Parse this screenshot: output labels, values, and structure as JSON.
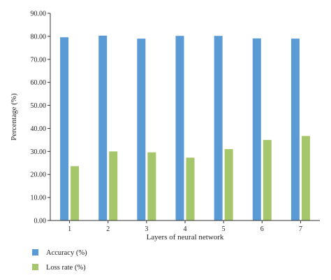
{
  "chart_data": {
    "type": "bar",
    "categories": [
      "1",
      "2",
      "3",
      "4",
      "5",
      "6",
      "7"
    ],
    "series": [
      {
        "name": "Accuracy (%)",
        "values": [
          79.6,
          80.3,
          79.0,
          80.2,
          80.2,
          79.1,
          79.0
        ],
        "color": "#5b9bd5"
      },
      {
        "name": "Loss rate (%)",
        "values": [
          23.6,
          30.0,
          29.6,
          27.3,
          31.0,
          35.0,
          36.7
        ],
        "color": "#a5c66a"
      }
    ],
    "title": "",
    "xlabel": "Layers of neural network",
    "ylabel": "Percentage (%)",
    "ylim": [
      0,
      90
    ],
    "yticks": [
      "0.00",
      "10.00",
      "20.00",
      "30.00",
      "40.00",
      "50.00",
      "60.00",
      "70.00",
      "80.00",
      "90.00"
    ],
    "grid": false,
    "legend_position": "bottom-left"
  }
}
